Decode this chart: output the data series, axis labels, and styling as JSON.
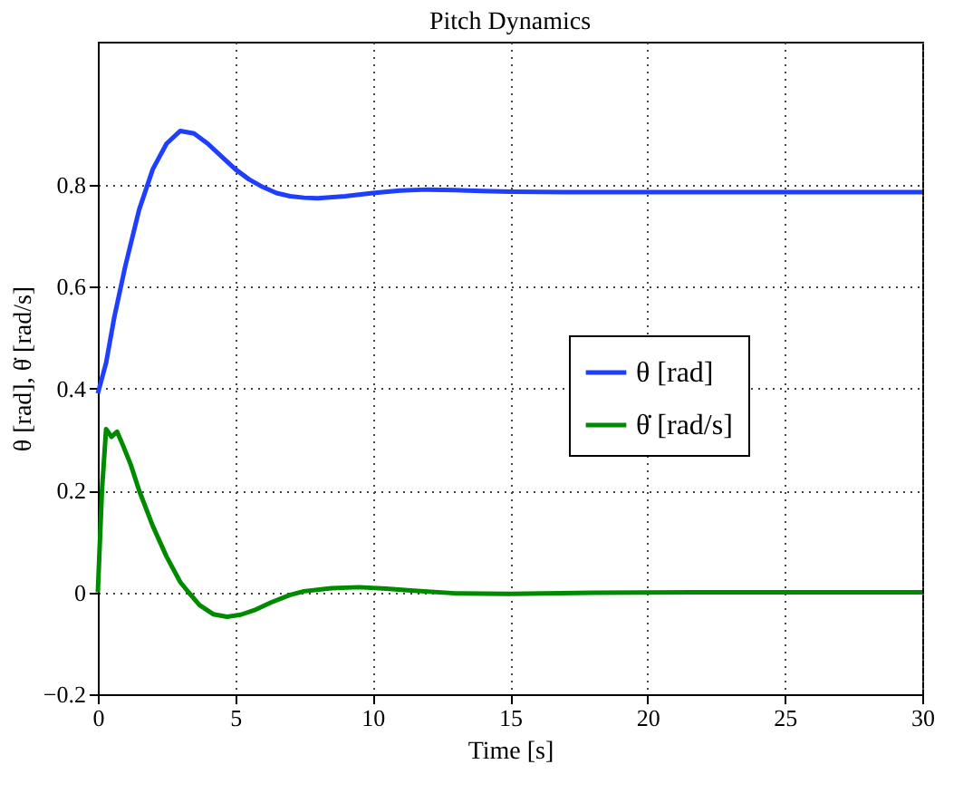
{
  "chart_data": {
    "type": "line",
    "title": "Pitch Dynamics",
    "xlabel": "Time [s]",
    "ylabel": "θ [rad], θ̇ [rad/s]",
    "xlim": [
      0,
      30
    ],
    "ylim": [
      -0.2,
      1.08
    ],
    "xticks": [
      0,
      5,
      10,
      15,
      20,
      25,
      30
    ],
    "yticks": [
      -0.2,
      0,
      0.2,
      0.4,
      0.6,
      0.8
    ],
    "grid": true,
    "legend": "right",
    "line_style": "solid",
    "series": [
      {
        "name": "θ [rad]",
        "color": "#1f3fff",
        "x": [
          0,
          0.3,
          0.6,
          1,
          1.5,
          2,
          2.5,
          3,
          3.5,
          4,
          4.5,
          5,
          5.5,
          6,
          6.5,
          7,
          7.5,
          8,
          9,
          10,
          11,
          12,
          13,
          14,
          15,
          17,
          20,
          25,
          30
        ],
        "values": [
          0.39,
          0.45,
          0.54,
          0.64,
          0.75,
          0.83,
          0.88,
          0.905,
          0.9,
          0.88,
          0.855,
          0.83,
          0.81,
          0.795,
          0.783,
          0.777,
          0.774,
          0.773,
          0.777,
          0.783,
          0.788,
          0.79,
          0.789,
          0.787,
          0.786,
          0.785,
          0.785,
          0.785,
          0.785
        ]
      },
      {
        "name": "θ̇ [rad/s]",
        "color": "#008a00",
        "x": [
          0,
          0.15,
          0.3,
          0.5,
          0.7,
          0.9,
          1.2,
          1.5,
          2,
          2.5,
          3,
          3.3,
          3.7,
          4.2,
          4.7,
          5.2,
          5.7,
          6.3,
          7,
          7.5,
          8.5,
          9.5,
          10.5,
          11.5,
          13,
          15,
          18,
          22,
          30
        ],
        "values": [
          0,
          0.2,
          0.32,
          0.305,
          0.315,
          0.29,
          0.25,
          0.2,
          0.13,
          0.07,
          0.02,
          0,
          -0.025,
          -0.043,
          -0.048,
          -0.044,
          -0.035,
          -0.02,
          -0.005,
          0.002,
          0.008,
          0.01,
          0.007,
          0.003,
          -0.002,
          -0.003,
          -0.001,
          0,
          0
        ]
      }
    ]
  }
}
